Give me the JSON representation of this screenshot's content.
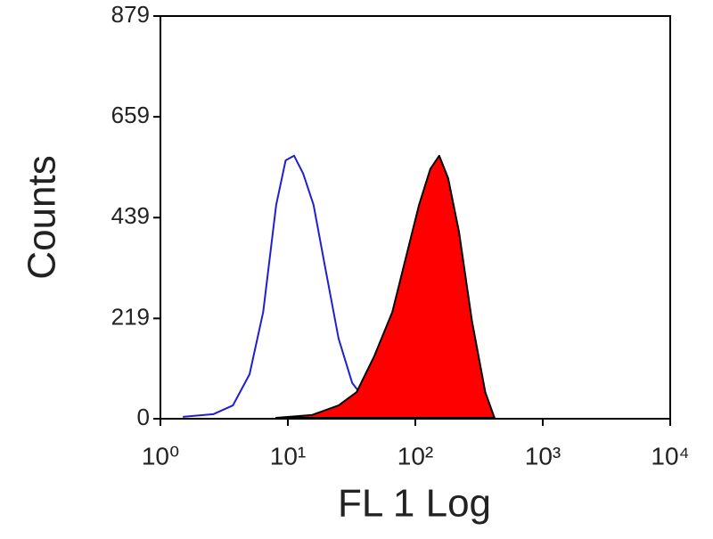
{
  "chart_data": {
    "type": "line",
    "x_label": "FL 1 Log",
    "y_label": "Counts",
    "xscale": "log",
    "xlim": [
      1,
      10000
    ],
    "xticks": [
      {
        "value": 1,
        "label": "10⁰"
      },
      {
        "value": 10,
        "label": "10¹"
      },
      {
        "value": 100,
        "label": "10²"
      },
      {
        "value": 1000,
        "label": "10³"
      },
      {
        "value": 10000,
        "label": "10⁴"
      }
    ],
    "ylim": [
      0,
      879
    ],
    "yticks": [
      0,
      219,
      439,
      659,
      879
    ],
    "series": [
      {
        "color": "#1f1fd0",
        "filled": false,
        "x": [
          1.5,
          2.6,
          3.7,
          5,
          6.4,
          8.1,
          9.6,
          11.2,
          13.2,
          15.9,
          19.6,
          25,
          32,
          41,
          66,
          125,
          240
        ],
        "values": [
          4,
          10,
          29,
          97,
          233,
          467,
          564,
          574,
          535,
          467,
          331,
          175,
          78,
          39,
          16,
          10,
          4
        ]
      },
      {
        "color": "#ff0000",
        "filled": true,
        "x": [
          8.1,
          15.4,
          25,
          34.6,
          47.5,
          66,
          84,
          107,
          131,
          154,
          181,
          220,
          278,
          354,
          418
        ],
        "values": [
          2,
          8,
          29,
          58,
          136,
          233,
          350,
          467,
          545,
          574,
          525,
          408,
          214,
          58,
          2
        ]
      }
    ]
  }
}
